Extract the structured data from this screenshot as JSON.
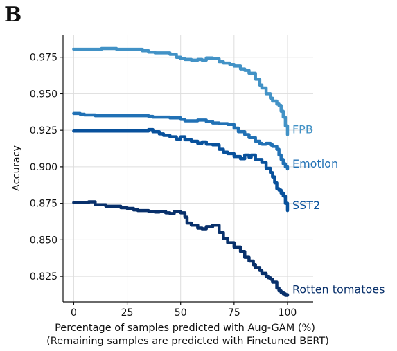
{
  "panel": {
    "letter": "B"
  },
  "chart_data": {
    "type": "line",
    "title": "",
    "xlabel": "Percentage of samples predicted with Aug-GAM (%)",
    "xlabel2": "(Remaining samples are predicted with Finetuned BERT)",
    "ylabel": "Accuracy",
    "xlim": [
      -5,
      112
    ],
    "ylim": [
      0.8075,
      0.9905
    ],
    "xticks": [
      0,
      25,
      50,
      75,
      100
    ],
    "xtick_labels": [
      "0",
      "25",
      "50",
      "75",
      "100"
    ],
    "yticks": [
      0.825,
      0.85,
      0.875,
      0.9,
      0.925,
      0.95,
      0.975
    ],
    "ytick_labels": [
      "0.825",
      "0.850",
      "0.875",
      "0.900",
      "0.925",
      "0.950",
      "0.975"
    ],
    "grid": true,
    "legend": "direct labels at line ends",
    "series": [
      {
        "name": "FPB",
        "color": "#4292c6",
        "x": [
          0,
          5,
          10,
          13,
          15,
          18,
          20,
          22,
          25,
          30,
          32,
          35,
          38,
          40,
          45,
          48,
          50,
          52,
          55,
          58,
          60,
          62,
          65,
          68,
          70,
          73,
          75,
          78,
          80,
          82,
          85,
          87,
          88,
          90,
          92,
          93,
          95,
          96,
          97,
          98,
          99,
          100
        ],
        "y": [
          0.9805,
          0.9805,
          0.9805,
          0.981,
          0.981,
          0.981,
          0.9805,
          0.9805,
          0.9805,
          0.9805,
          0.9795,
          0.9785,
          0.978,
          0.978,
          0.977,
          0.975,
          0.974,
          0.9735,
          0.973,
          0.9735,
          0.973,
          0.9745,
          0.974,
          0.972,
          0.971,
          0.97,
          0.969,
          0.967,
          0.966,
          0.964,
          0.96,
          0.956,
          0.954,
          0.95,
          0.947,
          0.945,
          0.943,
          0.942,
          0.938,
          0.934,
          0.928,
          0.922
        ]
      },
      {
        "name": "Emotion",
        "color": "#2171b5",
        "x": [
          0,
          3,
          5,
          10,
          15,
          20,
          25,
          30,
          35,
          37,
          40,
          45,
          50,
          52,
          55,
          58,
          60,
          62,
          65,
          68,
          70,
          72,
          75,
          77,
          80,
          82,
          85,
          87,
          88,
          90,
          92,
          93,
          95,
          96,
          97,
          98,
          99,
          100
        ],
        "y": [
          0.9365,
          0.936,
          0.9355,
          0.935,
          0.935,
          0.935,
          0.935,
          0.935,
          0.9345,
          0.934,
          0.934,
          0.9335,
          0.9325,
          0.9315,
          0.9315,
          0.932,
          0.932,
          0.931,
          0.93,
          0.9295,
          0.9295,
          0.929,
          0.9265,
          0.924,
          0.922,
          0.92,
          0.9175,
          0.916,
          0.9155,
          0.916,
          0.915,
          0.914,
          0.912,
          0.908,
          0.905,
          0.902,
          0.9,
          0.8985
        ]
      },
      {
        "name": "SST2",
        "color": "#08519c",
        "x": [
          0,
          10,
          20,
          30,
          34,
          35,
          37,
          40,
          42,
          45,
          48,
          50,
          52,
          55,
          58,
          60,
          62,
          65,
          68,
          70,
          72,
          75,
          78,
          80,
          82,
          83,
          85,
          88,
          90,
          91,
          92,
          93,
          94,
          95,
          96,
          97,
          98,
          99,
          100
        ],
        "y": [
          0.9245,
          0.9245,
          0.9245,
          0.9245,
          0.9245,
          0.9255,
          0.924,
          0.9225,
          0.9215,
          0.9205,
          0.919,
          0.9205,
          0.9185,
          0.9175,
          0.916,
          0.917,
          0.9155,
          0.915,
          0.912,
          0.91,
          0.909,
          0.907,
          0.9055,
          0.908,
          0.9065,
          0.908,
          0.905,
          0.903,
          0.899,
          0.899,
          0.896,
          0.893,
          0.889,
          0.885,
          0.884,
          0.882,
          0.88,
          0.875,
          0.87
        ]
      },
      {
        "name": "Rotten tomatoes",
        "color": "#08306b",
        "x": [
          0,
          3,
          5,
          7,
          8,
          10,
          15,
          20,
          22,
          25,
          28,
          30,
          33,
          35,
          38,
          40,
          43,
          45,
          47,
          50,
          52,
          53,
          55,
          58,
          60,
          62,
          65,
          68,
          70,
          72,
          75,
          78,
          80,
          82,
          84,
          85,
          87,
          88,
          90,
          91,
          92,
          93,
          95,
          96,
          97,
          98,
          99,
          100
        ],
        "y": [
          0.8755,
          0.8755,
          0.8755,
          0.876,
          0.876,
          0.874,
          0.873,
          0.873,
          0.872,
          0.8715,
          0.8705,
          0.87,
          0.87,
          0.8695,
          0.869,
          0.8695,
          0.8685,
          0.868,
          0.8695,
          0.8685,
          0.8655,
          0.8615,
          0.86,
          0.858,
          0.8575,
          0.859,
          0.86,
          0.855,
          0.851,
          0.848,
          0.845,
          0.842,
          0.838,
          0.8355,
          0.833,
          0.831,
          0.829,
          0.827,
          0.825,
          0.824,
          0.823,
          0.821,
          0.817,
          0.815,
          0.814,
          0.813,
          0.812,
          0.8125
        ]
      }
    ]
  }
}
